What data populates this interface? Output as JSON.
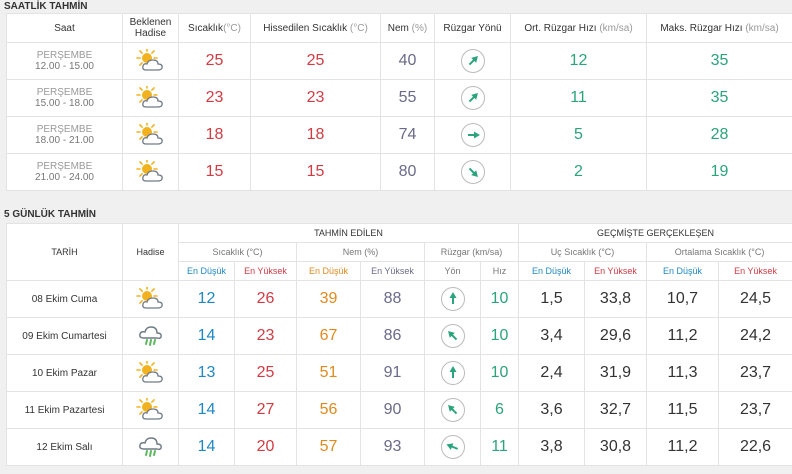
{
  "hourly": {
    "title": "SAATLİK TAHMİN",
    "headers": {
      "time": "Saat",
      "condition_1": "Beklenen",
      "condition_2": "Hadise",
      "temp": "Sıcaklık",
      "temp_unit": "(°C)",
      "feels": "Hissedilen Sıcaklık",
      "feels_unit": "(°C)",
      "humidity": "Nem",
      "humidity_unit": "(%)",
      "wind_dir": "Rüzgar Yönü",
      "wind_avg": "Ort. Rüzgar Hızı",
      "wind_avg_unit": "(km/sa)",
      "wind_max": "Maks. Rüzgar Hızı",
      "wind_max_unit": "(km/sa)"
    },
    "rows": [
      {
        "day": "PERŞEMBE",
        "time": "12.00 - 15.00",
        "icon": "partly-cloudy-sun-icon",
        "temp": "25",
        "feels": "25",
        "humidity": "40",
        "wind_dir": "south-west",
        "wind_avg": "12",
        "wind_max": "35"
      },
      {
        "day": "PERŞEMBE",
        "time": "15.00 - 18.00",
        "icon": "partly-cloudy-sun-icon",
        "temp": "23",
        "feels": "23",
        "humidity": "55",
        "wind_dir": "south-west",
        "wind_avg": "11",
        "wind_max": "35"
      },
      {
        "day": "PERŞEMBE",
        "time": "18.00 - 21.00",
        "icon": "partly-cloudy-sun-icon",
        "temp": "18",
        "feels": "18",
        "humidity": "74",
        "wind_dir": "west",
        "wind_avg": "5",
        "wind_max": "28"
      },
      {
        "day": "PERŞEMBE",
        "time": "21.00 - 24.00",
        "icon": "partly-cloudy-sun-icon",
        "temp": "15",
        "feels": "15",
        "humidity": "80",
        "wind_dir": "north-west",
        "wind_avg": "2",
        "wind_max": "19"
      }
    ]
  },
  "daily": {
    "title": "5 GÜNLÜK TAHMİN",
    "headers": {
      "date": "TARİH",
      "condition": "Hadise",
      "forecast_group": "TAHMİN EDİLEN",
      "actual_group": "GEÇMİŞTE GERÇEKLEŞEN",
      "temp": "Sıcaklık (°C)",
      "humidity": "Nem (%)",
      "wind": "Rüzgar (km/sa)",
      "extreme_temp": "Uç Sıcaklık (°C)",
      "avg_temp": "Ortalama Sıcaklık (°C)",
      "low": "En Düşük",
      "high": "En Yüksek",
      "direction": "Yön",
      "speed": "Hız"
    },
    "rows": [
      {
        "date": "08 Ekim Cuma",
        "icon": "partly-cloudy-sun-icon",
        "t_lo": "12",
        "t_hi": "26",
        "h_lo": "39",
        "h_hi": "88",
        "wind_dir": "south",
        "wind_speed": "10",
        "ext_lo": "1,5",
        "ext_hi": "33,8",
        "avg_lo": "10,7",
        "avg_hi": "24,5"
      },
      {
        "date": "09 Ekim Cumartesi",
        "icon": "rain-cloud-icon",
        "t_lo": "14",
        "t_hi": "23",
        "h_lo": "67",
        "h_hi": "86",
        "wind_dir": "south-east",
        "wind_speed": "10",
        "ext_lo": "3,4",
        "ext_hi": "29,6",
        "avg_lo": "11,2",
        "avg_hi": "24,2"
      },
      {
        "date": "10 Ekim Pazar",
        "icon": "partly-cloudy-sun-icon",
        "t_lo": "13",
        "t_hi": "25",
        "h_lo": "51",
        "h_hi": "91",
        "wind_dir": "south",
        "wind_speed": "10",
        "ext_lo": "2,4",
        "ext_hi": "31,9",
        "avg_lo": "11,3",
        "avg_hi": "23,7"
      },
      {
        "date": "11 Ekim Pazartesi",
        "icon": "partly-cloudy-sun-icon",
        "t_lo": "14",
        "t_hi": "27",
        "h_lo": "56",
        "h_hi": "90",
        "wind_dir": "south-east",
        "wind_speed": "6",
        "ext_lo": "3,6",
        "ext_hi": "32,7",
        "avg_lo": "11,5",
        "avg_hi": "23,7"
      },
      {
        "date": "12 Ekim Salı",
        "icon": "rain-cloud-icon",
        "t_lo": "14",
        "t_hi": "20",
        "h_lo": "57",
        "h_hi": "93",
        "wind_dir": "east-south-east",
        "wind_speed": "11",
        "ext_lo": "3,8",
        "ext_hi": "30,8",
        "avg_lo": "11,2",
        "avg_hi": "22,6"
      }
    ]
  },
  "colors": {
    "arrow": "#2ba37c",
    "sun": "#f2b21f",
    "cloud": "#6f7a85",
    "rain": "#5cb85c"
  }
}
